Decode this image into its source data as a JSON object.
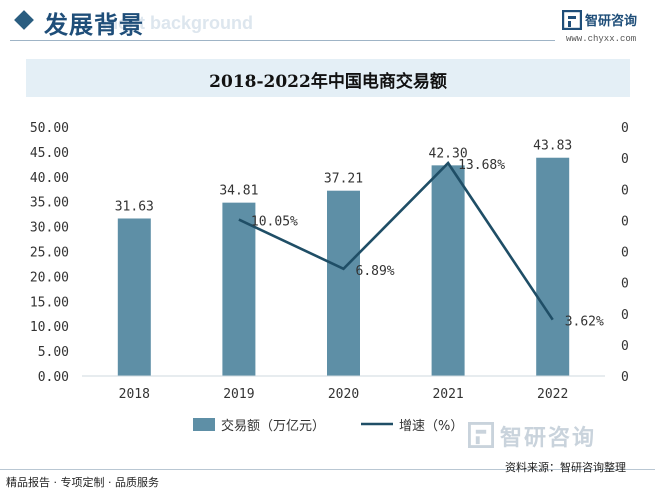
{
  "header": {
    "title": "发展背景",
    "ghost_text": "ment background"
  },
  "logo": {
    "name": "智研咨询",
    "url": "www.chyxx.com"
  },
  "watermark": {
    "text": "智研咨询"
  },
  "footer": {
    "left": "精品报告 · 专项定制 · 品质服务",
    "source": "资料来源：智研咨询整理"
  },
  "colors": {
    "bar": "#5e8fa6",
    "line": "#1f4e66",
    "title_band": "#e4eff6"
  },
  "chart_data": {
    "type": "bar",
    "title": "2018-2022年中国电商交易额",
    "categories": [
      "2018",
      "2019",
      "2020",
      "2021",
      "2022"
    ],
    "series": [
      {
        "name": "交易额（万亿元）",
        "type": "bar",
        "axis": "left",
        "values": [
          31.63,
          34.81,
          37.21,
          42.3,
          43.83
        ],
        "labels": [
          "31.63",
          "34.81",
          "37.21",
          "42.30",
          "43.83"
        ]
      },
      {
        "name": "增速（%）",
        "type": "line",
        "axis": "right",
        "values": [
          null,
          10.05,
          6.89,
          13.68,
          3.62
        ],
        "labels": [
          "",
          "10.05%",
          "6.89%",
          "13.68%",
          "3.62%"
        ]
      }
    ],
    "left_axis": {
      "ylim": [
        0,
        50
      ],
      "ticks": [
        "0.00",
        "5.00",
        "10.00",
        "15.00",
        "20.00",
        "25.00",
        "30.00",
        "35.00",
        "40.00",
        "45.00",
        "50.00"
      ]
    },
    "right_axis": {
      "ylim": [
        0,
        16
      ],
      "ticks": [
        "0",
        "0",
        "0",
        "0",
        "0",
        "0",
        "0",
        "0",
        "0"
      ]
    },
    "legend_position": "bottom",
    "grid": false
  }
}
